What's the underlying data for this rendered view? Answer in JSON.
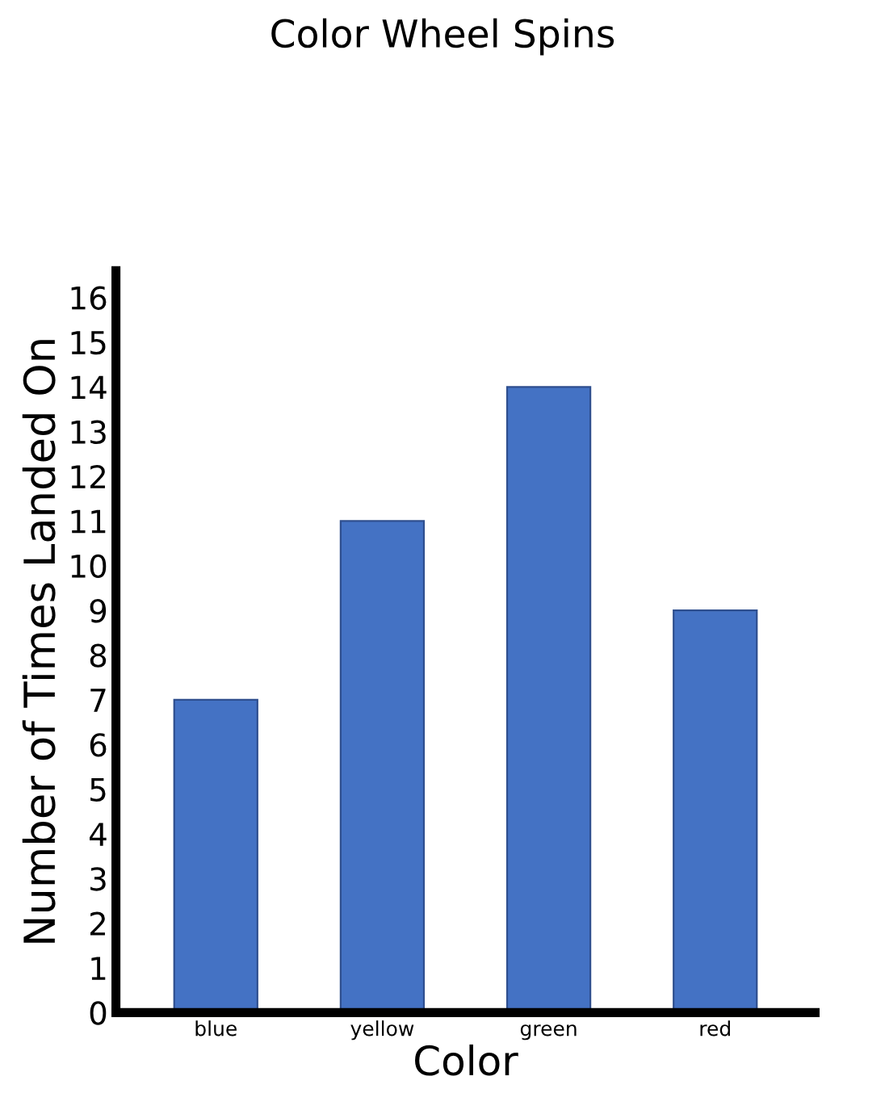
{
  "chart_data": {
    "type": "bar",
    "title": "Color Wheel Spins",
    "xlabel": "Color",
    "ylabel": "Number of Times Landed On",
    "categories": [
      "blue",
      "yellow",
      "green",
      "red"
    ],
    "values": [
      7,
      11,
      14,
      9
    ],
    "color": "#4472c4",
    "ylim": [
      0,
      16.6
    ],
    "yticks": [
      0,
      1,
      2,
      3,
      4,
      5,
      6,
      7,
      8,
      9,
      10,
      11,
      12,
      13,
      14,
      15,
      16
    ],
    "grid": false,
    "legend": false
  }
}
